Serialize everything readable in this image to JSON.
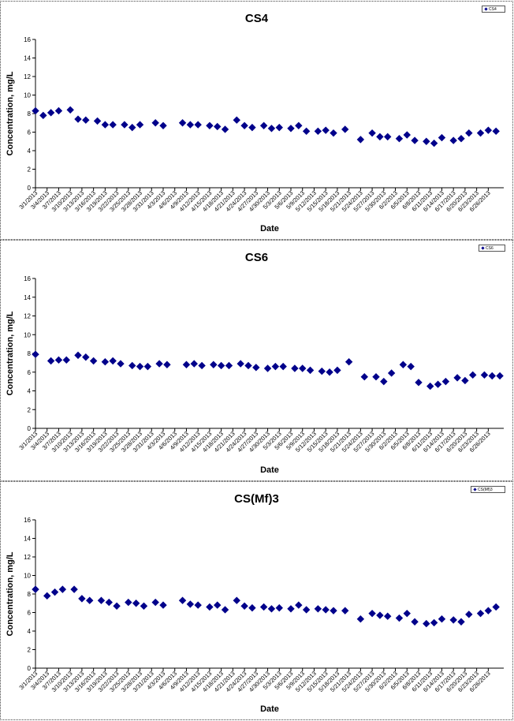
{
  "chart_data": [
    {
      "type": "scatter",
      "title": "CS4",
      "xlabel": "Date",
      "ylabel": "Concentration, mg/L",
      "ylim": [
        0,
        16
      ],
      "yticks": [
        "0",
        "2",
        "4",
        "6",
        "8",
        "10",
        "12",
        "14",
        "16"
      ],
      "grid": false,
      "legend_position": "top-right",
      "legend_label": "CS4",
      "marker_color": "#00008B",
      "xlim": [
        "3/1/2013",
        "6/30/2013"
      ],
      "xtick_labels": [
        "3/1/2013",
        "3/4/2013",
        "3/7/2013",
        "3/10/2013",
        "3/13/2013",
        "3/16/2013",
        "3/19/2013",
        "3/22/2013",
        "3/25/2013",
        "3/28/2013",
        "3/31/2013",
        "4/3/2013",
        "4/6/2013",
        "4/9/2013",
        "4/12/2013",
        "4/15/2013",
        "4/18/2013",
        "4/21/2013",
        "4/24/2013",
        "4/27/2013",
        "4/30/2013",
        "5/3/2013",
        "5/6/2013",
        "5/9/2013",
        "5/12/2013",
        "5/15/2013",
        "5/18/2013",
        "5/21/2013",
        "5/24/2013",
        "5/27/2013",
        "5/30/2013",
        "6/2/2013",
        "6/5/2013",
        "6/8/2013",
        "6/11/2013",
        "6/14/2013",
        "6/17/2013",
        "6/20/2013",
        "6/23/2013",
        "6/26/2013"
      ],
      "series": [
        {
          "x": [
            "3/1/2013",
            "3/3/2013",
            "3/5/2013",
            "3/7/2013",
            "3/10/2013",
            "3/12/2013",
            "3/14/2013",
            "3/17/2013",
            "3/19/2013",
            "3/21/2013",
            "3/24/2013",
            "3/26/2013",
            "3/28/2013",
            "4/1/2013",
            "4/3/2013",
            "4/8/2013",
            "4/10/2013",
            "4/12/2013",
            "4/15/2013",
            "4/17/2013",
            "4/19/2013",
            "4/22/2013",
            "4/24/2013",
            "4/26/2013",
            "4/29/2013",
            "5/1/2013",
            "5/3/2013",
            "5/6/2013",
            "5/8/2013",
            "5/10/2013",
            "5/13/2013",
            "5/15/2013",
            "5/17/2013",
            "5/20/2013",
            "5/24/2013",
            "5/27/2013",
            "5/29/2013",
            "5/31/2013",
            "6/3/2013",
            "6/5/2013",
            "6/7/2013",
            "6/10/2013",
            "6/12/2013",
            "6/14/2013",
            "6/17/2013",
            "6/19/2013",
            "6/21/2013",
            "6/24/2013",
            "6/26/2013",
            "6/28/2013"
          ],
          "y": [
            8.3,
            7.8,
            8.1,
            8.3,
            8.4,
            7.4,
            7.3,
            7.2,
            6.8,
            6.8,
            6.8,
            6.5,
            6.8,
            7.0,
            6.7,
            7.0,
            6.8,
            6.8,
            6.7,
            6.6,
            6.3,
            7.3,
            6.7,
            6.5,
            6.7,
            6.4,
            6.5,
            6.4,
            6.7,
            6.1,
            6.1,
            6.2,
            5.9,
            6.3,
            5.2,
            5.9,
            5.5,
            5.5,
            5.3,
            5.7,
            5.1,
            5.0,
            4.8,
            5.4,
            5.1,
            5.3,
            5.9,
            5.9,
            6.2,
            6.1
          ]
        }
      ]
    },
    {
      "type": "scatter",
      "title": "CS6",
      "xlabel": "Date",
      "ylabel": "Concentration, mg/L",
      "ylim": [
        0,
        16
      ],
      "yticks": [
        "0",
        "2",
        "4",
        "6",
        "8",
        "10",
        "12",
        "14",
        "16"
      ],
      "grid": false,
      "legend_position": "top-right",
      "legend_label": "CS6",
      "marker_color": "#00008B",
      "xlim": [
        "3/1/2013",
        "6/30/2013"
      ],
      "xtick_labels": [
        "3/1/2013",
        "3/4/2013",
        "3/7/2013",
        "3/10/2013",
        "3/13/2013",
        "3/16/2013",
        "3/19/2013",
        "3/22/2013",
        "3/25/2013",
        "3/28/2013",
        "3/31/2013",
        "4/3/2013",
        "4/6/2013",
        "4/9/2013",
        "4/12/2013",
        "4/15/2013",
        "4/18/2013",
        "4/21/2013",
        "4/24/2013",
        "4/27/2013",
        "4/30/2013",
        "5/3/2013",
        "5/6/2013",
        "5/9/2013",
        "5/12/2013",
        "5/15/2013",
        "5/18/2013",
        "5/21/2013",
        "5/24/2013",
        "5/27/2013",
        "5/30/2013",
        "6/2/2013",
        "6/5/2013",
        "6/8/2013",
        "6/11/2013",
        "6/14/2013",
        "6/17/2013",
        "6/20/2013",
        "6/23/2013",
        "6/26/2013"
      ],
      "series": [
        {
          "x": [
            "3/1/2013",
            "3/5/2013",
            "3/7/2013",
            "3/9/2013",
            "3/12/2013",
            "3/14/2013",
            "3/16/2013",
            "3/19/2013",
            "3/21/2013",
            "3/23/2013",
            "3/26/2013",
            "3/28/2013",
            "3/30/2013",
            "4/2/2013",
            "4/4/2013",
            "4/9/2013",
            "4/11/2013",
            "4/13/2013",
            "4/16/2013",
            "4/18/2013",
            "4/20/2013",
            "4/23/2013",
            "4/25/2013",
            "4/27/2013",
            "4/30/2013",
            "5/2/2013",
            "5/4/2013",
            "5/7/2013",
            "5/9/2013",
            "5/11/2013",
            "5/14/2013",
            "5/16/2013",
            "5/18/2013",
            "5/21/2013",
            "5/25/2013",
            "5/28/2013",
            "5/30/2013",
            "6/1/2013",
            "6/4/2013",
            "6/6/2013",
            "6/8/2013",
            "6/11/2013",
            "6/13/2013",
            "6/15/2013",
            "6/18/2013",
            "6/20/2013",
            "6/22/2013",
            "6/25/2013",
            "6/27/2013",
            "6/29/2013"
          ],
          "y": [
            7.9,
            7.2,
            7.3,
            7.3,
            7.8,
            7.6,
            7.2,
            7.1,
            7.2,
            6.9,
            6.7,
            6.6,
            6.6,
            6.9,
            6.8,
            6.8,
            6.9,
            6.7,
            6.8,
            6.7,
            6.7,
            6.9,
            6.7,
            6.5,
            6.4,
            6.6,
            6.6,
            6.4,
            6.4,
            6.2,
            6.1,
            6.0,
            6.2,
            7.1,
            5.5,
            5.5,
            5.0,
            5.9,
            6.8,
            6.6,
            4.9,
            4.5,
            4.7,
            5.0,
            5.4,
            5.1,
            5.7,
            5.7,
            5.6,
            5.6
          ]
        }
      ]
    },
    {
      "type": "scatter",
      "title": "CS(Mf)3",
      "xlabel": "Date",
      "ylabel": "Concentration, mg/L",
      "ylim": [
        0,
        16
      ],
      "yticks": [
        "0",
        "2",
        "4",
        "6",
        "8",
        "10",
        "12",
        "14",
        "16"
      ],
      "grid": false,
      "legend_position": "top-right",
      "legend_label": "CS(Mf)3",
      "marker_color": "#00008B",
      "xlim": [
        "3/1/2013",
        "6/30/2013"
      ],
      "xtick_labels": [
        "3/1/2013",
        "3/4/2013",
        "3/7/2013",
        "3/10/2013",
        "3/13/2013",
        "3/16/2013",
        "3/19/2013",
        "3/22/2013",
        "3/25/2013",
        "3/28/2013",
        "3/31/2013",
        "4/3/2013",
        "4/6/2013",
        "4/9/2013",
        "4/12/2013",
        "4/15/2013",
        "4/18/2013",
        "4/21/2013",
        "4/24/2013",
        "4/27/2013",
        "4/30/2013",
        "5/3/2013",
        "5/6/2013",
        "5/9/2013",
        "5/12/2013",
        "5/15/2013",
        "5/18/2013",
        "5/21/2013",
        "5/24/2013",
        "5/27/2013",
        "5/30/2013",
        "6/2/2013",
        "6/5/2013",
        "6/8/2013",
        "6/11/2013",
        "6/14/2013",
        "6/17/2013",
        "6/20/2013",
        "6/23/2013",
        "6/26/2013"
      ],
      "series": [
        {
          "x": [
            "3/1/2013",
            "3/4/2013",
            "3/6/2013",
            "3/8/2013",
            "3/11/2013",
            "3/13/2013",
            "3/15/2013",
            "3/18/2013",
            "3/20/2013",
            "3/22/2013",
            "3/25/2013",
            "3/27/2013",
            "3/29/2013",
            "4/1/2013",
            "4/3/2013",
            "4/8/2013",
            "4/10/2013",
            "4/12/2013",
            "4/15/2013",
            "4/17/2013",
            "4/19/2013",
            "4/22/2013",
            "4/24/2013",
            "4/26/2013",
            "4/29/2013",
            "5/1/2013",
            "5/3/2013",
            "5/6/2013",
            "5/8/2013",
            "5/10/2013",
            "5/13/2013",
            "5/15/2013",
            "5/17/2013",
            "5/20/2013",
            "5/24/2013",
            "5/27/2013",
            "5/29/2013",
            "5/31/2013",
            "6/3/2013",
            "6/5/2013",
            "6/7/2013",
            "6/10/2013",
            "6/12/2013",
            "6/14/2013",
            "6/17/2013",
            "6/19/2013",
            "6/21/2013",
            "6/24/2013",
            "6/26/2013",
            "6/28/2013"
          ],
          "y": [
            8.5,
            7.8,
            8.2,
            8.5,
            8.5,
            7.5,
            7.3,
            7.3,
            7.1,
            6.7,
            7.1,
            7.0,
            6.7,
            7.1,
            6.8,
            7.3,
            6.9,
            6.8,
            6.6,
            6.8,
            6.3,
            7.3,
            6.7,
            6.5,
            6.6,
            6.4,
            6.5,
            6.4,
            6.8,
            6.3,
            6.4,
            6.3,
            6.2,
            6.2,
            5.3,
            5.9,
            5.7,
            5.6,
            5.4,
            5.9,
            5.0,
            4.8,
            4.9,
            5.3,
            5.2,
            5.0,
            5.8,
            5.9,
            6.2,
            6.6
          ]
        }
      ]
    }
  ]
}
